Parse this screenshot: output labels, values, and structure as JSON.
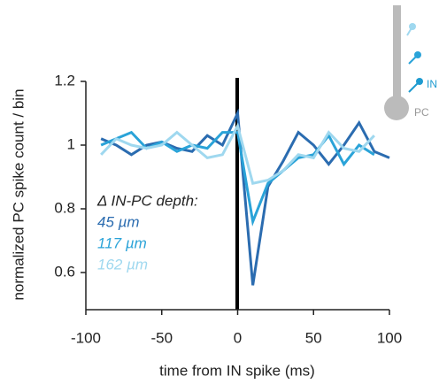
{
  "chart_data": {
    "type": "line",
    "x_label": "time from IN spike (ms)",
    "y_label": "normalized PC spike count / bin",
    "legend_title": "Δ IN-PC depth:",
    "icon_labels": [
      "IN",
      "PC"
    ],
    "x": [
      -90,
      -80,
      -70,
      -60,
      -50,
      -40,
      -30,
      -20,
      -10,
      0,
      10,
      20,
      30,
      40,
      50,
      60,
      70,
      80,
      90,
      100
    ],
    "series": [
      {
        "name": "45 µm",
        "color": "#2b6cb0",
        "values": [
          1.02,
          1.0,
          0.97,
          1.0,
          1.01,
          0.99,
          0.98,
          1.03,
          1.0,
          1.1,
          0.56,
          0.87,
          0.95,
          1.04,
          1.0,
          0.94,
          1.0,
          1.07,
          0.98,
          0.96
        ]
      },
      {
        "name": "117 µm",
        "color": "#2aa3d8",
        "values": [
          1.0,
          1.02,
          1.04,
          0.99,
          1.01,
          0.98,
          1.0,
          0.99,
          1.04,
          1.04,
          0.76,
          0.88,
          0.92,
          0.96,
          0.97,
          1.03,
          0.94,
          1.0,
          0.97,
          null
        ]
      },
      {
        "name": "162 µm",
        "color": "#9fd8ef",
        "values": [
          0.97,
          1.02,
          1.0,
          0.99,
          1.0,
          1.04,
          1.0,
          0.96,
          0.97,
          1.06,
          0.88,
          0.89,
          0.92,
          0.97,
          0.96,
          1.04,
          0.99,
          0.98,
          1.03,
          null
        ]
      }
    ],
    "xlim": [
      -100,
      100
    ],
    "xticks": [
      -100,
      -50,
      0,
      50,
      100
    ],
    "ylim": [
      0.5,
      1.2
    ],
    "yticks": [
      0.6,
      0.8,
      1,
      1.2
    ],
    "grid": false
  }
}
